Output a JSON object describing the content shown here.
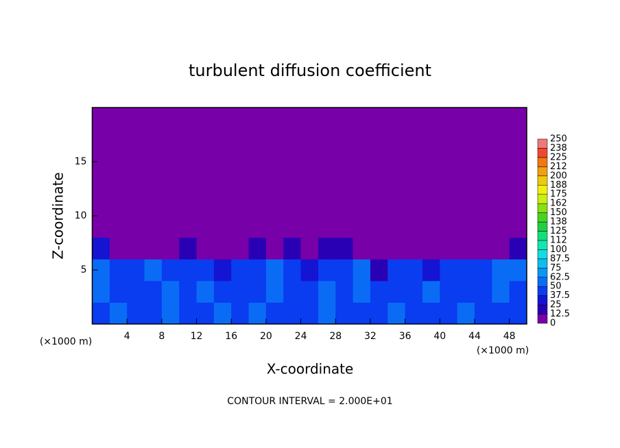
{
  "chart_data": {
    "type": "heatmap",
    "title": "turbulent diffusion coefficient",
    "xlabel": "X-coordinate",
    "ylabel": "Z-coordinate",
    "x_unit": "(×1000 m)",
    "footnote": "CONTOUR INTERVAL = 2.000E+01",
    "xlim": [
      0,
      50
    ],
    "ylim": [
      0,
      20
    ],
    "xticks": [
      4,
      8,
      12,
      16,
      20,
      24,
      28,
      32,
      36,
      40,
      44,
      48
    ],
    "yticks": [
      5,
      10,
      15
    ],
    "levels": [
      0,
      12.5,
      25,
      37.5,
      50,
      62.5,
      75,
      87.5,
      100,
      112,
      125,
      138,
      150,
      162,
      175,
      188,
      200,
      212,
      225,
      238,
      250
    ],
    "colors": [
      "#7800a8",
      "#2a00b4",
      "#1414d2",
      "#0a3cf0",
      "#0a6cf5",
      "#0a96f5",
      "#10bcf0",
      "#10dce4",
      "#10e8b0",
      "#10e07c",
      "#20d040",
      "#48d420",
      "#88e010",
      "#c8f010",
      "#f0f010",
      "#f0c810",
      "#f0a010",
      "#f07810",
      "#f04830",
      "#f07878"
    ],
    "values": [
      [
        45,
        50,
        40,
        45,
        50,
        45,
        40,
        50,
        45,
        50,
        45,
        40,
        45,
        50,
        45,
        40,
        45,
        50,
        45,
        40,
        45,
        50,
        45,
        40,
        45
      ],
      [
        50,
        45,
        45,
        40,
        55,
        45,
        50,
        45,
        40,
        45,
        50,
        45,
        40,
        50,
        45,
        55,
        45,
        40,
        45,
        50,
        45,
        40,
        45,
        50,
        45
      ],
      [
        55,
        40,
        40,
        50,
        45,
        40,
        45,
        35,
        40,
        45,
        50,
        40,
        30,
        45,
        40,
        50,
        20,
        45,
        40,
        35,
        45,
        40,
        45,
        50,
        50
      ],
      [
        30,
        0,
        0,
        0,
        10,
        20,
        0,
        0,
        0,
        15,
        10,
        20,
        10,
        20,
        15,
        0,
        0,
        0,
        0,
        5,
        10,
        0,
        0,
        0,
        20
      ],
      [
        0,
        0,
        0,
        0,
        0,
        0,
        0,
        0,
        0,
        0,
        0,
        0,
        0,
        0,
        0,
        0,
        0,
        0,
        0,
        0,
        0,
        0,
        0,
        0,
        0
      ],
      [
        0,
        0,
        0,
        0,
        0,
        0,
        0,
        0,
        0,
        0,
        0,
        0,
        0,
        0,
        0,
        0,
        0,
        0,
        0,
        0,
        0,
        0,
        0,
        0,
        0
      ],
      [
        0,
        0,
        0,
        0,
        0,
        0,
        0,
        0,
        0,
        0,
        0,
        0,
        0,
        0,
        0,
        0,
        0,
        0,
        0,
        0,
        0,
        0,
        0,
        0,
        0
      ],
      [
        0,
        0,
        0,
        0,
        0,
        0,
        0,
        0,
        0,
        0,
        0,
        0,
        0,
        0,
        0,
        0,
        0,
        0,
        0,
        0,
        0,
        0,
        0,
        0,
        0
      ],
      [
        0,
        0,
        0,
        0,
        0,
        0,
        0,
        0,
        0,
        0,
        0,
        0,
        0,
        0,
        0,
        0,
        0,
        0,
        0,
        0,
        0,
        0,
        0,
        0,
        0
      ],
      [
        0,
        0,
        0,
        0,
        0,
        0,
        0,
        0,
        0,
        0,
        0,
        0,
        0,
        0,
        0,
        0,
        0,
        0,
        0,
        0,
        0,
        0,
        0,
        0,
        0
      ]
    ]
  }
}
